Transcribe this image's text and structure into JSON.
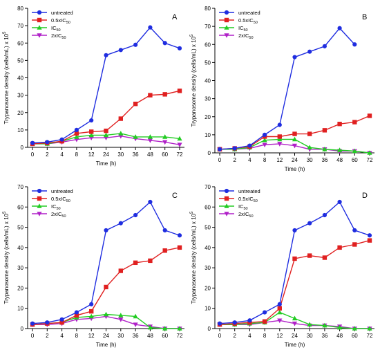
{
  "chart_data": [
    {
      "type": "line",
      "panel_label": "A",
      "categories": [
        "0",
        "2",
        "4",
        "8",
        "12",
        "24",
        "30",
        "36",
        "48",
        "60",
        "72"
      ],
      "xlabel": "Time (h)",
      "ylabel": "Trypanosome density (cells/mL) x 10",
      "ylabel_exponent": "5",
      "ylim": [
        0,
        80
      ],
      "yticks": [
        "0",
        "10",
        "20",
        "30",
        "40",
        "50",
        "60",
        "70",
        "80"
      ],
      "legend_position": "top-left",
      "series": [
        {
          "name": "untreated",
          "legend_main": "untreated",
          "legend_sub": "",
          "color": "#1f2de0",
          "marker": "circle",
          "values": [
            2.5,
            3,
            4.5,
            10,
            15.5,
            53,
            56,
            59,
            69,
            60,
            57
          ]
        },
        {
          "name": "0.5xIC50",
          "legend_main": "0.5xIC",
          "legend_sub": "50",
          "color": "#e02020",
          "marker": "square",
          "values": [
            2,
            2.5,
            3.5,
            8,
            9,
            9.5,
            16.5,
            25,
            30,
            30.5,
            32.5
          ]
        },
        {
          "name": "IC50",
          "legend_main": "IC",
          "legend_sub": "50",
          "color": "#22cc22",
          "marker": "triangle-up",
          "values": [
            2,
            2,
            3.5,
            6,
            7,
            7,
            8,
            6,
            6,
            6,
            5
          ]
        },
        {
          "name": "2xIC50",
          "legend_main": "2xIC",
          "legend_sub": "50",
          "color": "#b020c8",
          "marker": "triangle-down",
          "values": [
            2,
            2,
            3,
            4.5,
            5.5,
            5.5,
            6.5,
            5,
            4,
            3,
            1.5
          ]
        }
      ]
    },
    {
      "type": "line",
      "panel_label": "B",
      "categories": [
        "0",
        "2",
        "4",
        "8",
        "12",
        "24",
        "30",
        "36",
        "48",
        "60",
        "72"
      ],
      "xlabel": "Time (h)",
      "ylabel": "Trypanosome density (cells/mL) x 10",
      "ylabel_exponent": "5",
      "ylim": [
        0,
        80
      ],
      "yticks": [
        "0",
        "10",
        "20",
        "30",
        "40",
        "50",
        "60",
        "70",
        "80"
      ],
      "legend_position": "top-left",
      "series": [
        {
          "name": "untreated",
          "legend_main": "untreated",
          "legend_sub": "",
          "color": "#1f2de0",
          "marker": "circle",
          "values": [
            2,
            2.5,
            4,
            10,
            15.5,
            53,
            56,
            59,
            69,
            60,
            null
          ]
        },
        {
          "name": "0.5xIC50",
          "legend_main": "0.5xIC",
          "legend_sub": "50",
          "color": "#e02020",
          "marker": "square",
          "values": [
            2,
            2.5,
            3.5,
            9,
            9,
            10.5,
            10.5,
            12.5,
            16,
            17,
            20.5
          ]
        },
        {
          "name": "IC50",
          "legend_main": "IC",
          "legend_sub": "50",
          "color": "#22cc22",
          "marker": "triangle-up",
          "values": [
            2,
            2,
            3,
            7,
            7.5,
            7.5,
            3,
            2,
            1.5,
            1,
            0
          ]
        },
        {
          "name": "2xIC50",
          "legend_main": "2xIC",
          "legend_sub": "50",
          "color": "#b020c8",
          "marker": "triangle-down",
          "values": [
            2,
            2,
            2.5,
            4.5,
            5,
            4,
            2,
            2,
            1,
            1,
            0
          ]
        }
      ]
    },
    {
      "type": "line",
      "panel_label": "C",
      "categories": [
        "0",
        "2",
        "4",
        "8",
        "12",
        "24",
        "30",
        "36",
        "48",
        "60",
        "72"
      ],
      "xlabel": "Time (h)",
      "ylabel": "Trypanosome density (cells/mL) x 10",
      "ylabel_exponent": "5",
      "ylim": [
        0,
        70
      ],
      "yticks": [
        "0",
        "10",
        "20",
        "30",
        "40",
        "50",
        "60",
        "70"
      ],
      "legend_position": "top-left",
      "series": [
        {
          "name": "untreated",
          "legend_main": "untreated",
          "legend_sub": "",
          "color": "#1f2de0",
          "marker": "circle",
          "values": [
            2.5,
            3,
            4.5,
            8,
            12,
            48.5,
            52,
            56,
            62.5,
            48.5,
            46
          ]
        },
        {
          "name": "0.5xIC50",
          "legend_main": "0.5xIC",
          "legend_sub": "50",
          "color": "#e02020",
          "marker": "square",
          "values": [
            2,
            2.5,
            3,
            6.5,
            8.5,
            20.5,
            28.5,
            32.5,
            33.5,
            38.5,
            40
          ]
        },
        {
          "name": "IC50",
          "legend_main": "IC",
          "legend_sub": "50",
          "color": "#22cc22",
          "marker": "triangle-up",
          "values": [
            2,
            2.5,
            3,
            5.5,
            6,
            7,
            6.5,
            6,
            0.5,
            0,
            0
          ]
        },
        {
          "name": "2xIC50",
          "legend_main": "2xIC",
          "legend_sub": "50",
          "color": "#b020c8",
          "marker": "triangle-down",
          "values": [
            2,
            2,
            2.5,
            4.5,
            5,
            6,
            4.5,
            2,
            1,
            0,
            0
          ]
        }
      ]
    },
    {
      "type": "line",
      "panel_label": "D",
      "categories": [
        "0",
        "2",
        "4",
        "8",
        "12",
        "24",
        "30",
        "36",
        "48",
        "60",
        "72"
      ],
      "xlabel": "Time (h)",
      "ylabel": "Trypanosome density (cells/mL) x 10",
      "ylabel_exponent": "5",
      "ylim": [
        0,
        70
      ],
      "yticks": [
        "0",
        "10",
        "20",
        "30",
        "40",
        "50",
        "60",
        "70"
      ],
      "legend_position": "top-left",
      "series": [
        {
          "name": "untreated",
          "legend_main": "untreated",
          "legend_sub": "",
          "color": "#1f2de0",
          "marker": "circle",
          "values": [
            2.5,
            3,
            4,
            8,
            12,
            48.5,
            52,
            56,
            62.5,
            48.5,
            46
          ]
        },
        {
          "name": "0.5xIC50",
          "legend_main": "0.5xIC",
          "legend_sub": "50",
          "color": "#e02020",
          "marker": "square",
          "values": [
            2,
            2.5,
            3,
            3.5,
            10,
            34.5,
            36,
            35,
            40,
            41.5,
            43.5
          ]
        },
        {
          "name": "IC50",
          "legend_main": "IC",
          "legend_sub": "50",
          "color": "#22cc22",
          "marker": "triangle-up",
          "values": [
            2,
            2,
            2.5,
            3,
            8,
            5,
            2,
            1.5,
            0.5,
            0,
            0
          ]
        },
        {
          "name": "2xIC50",
          "legend_main": "2xIC",
          "legend_sub": "50",
          "color": "#b020c8",
          "marker": "triangle-down",
          "values": [
            2,
            2,
            2,
            3,
            4,
            2.5,
            1.5,
            1.5,
            1,
            0,
            0
          ]
        }
      ]
    }
  ]
}
